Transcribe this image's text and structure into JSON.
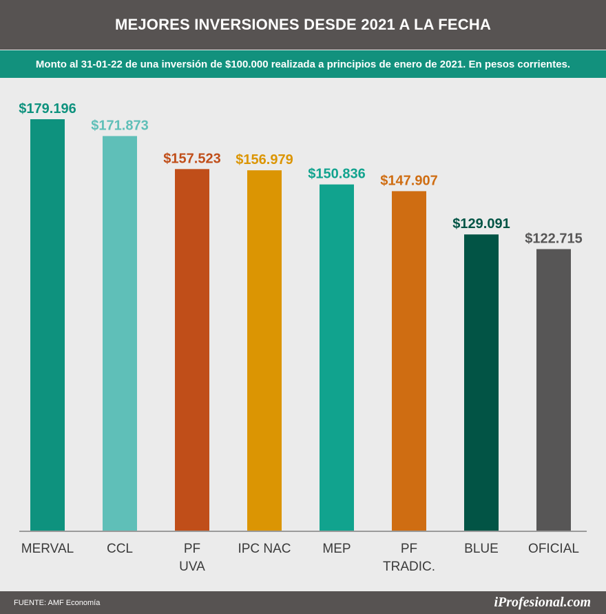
{
  "header": {
    "title": "MEJORES INVERSIONES DESDE 2021 A LA FECHA",
    "subtitle": "Monto al 31-01-22 de una inversión de $100.000 realizada a principios de enero de 2021. En pesos corrientes."
  },
  "chart_data": {
    "type": "bar",
    "title": "MEJORES INVERSIONES DESDE 2021 A LA FECHA",
    "subtitle": "Monto al 31-01-22 de una inversión de $100.000 realizada a principios de enero de 2021. En pesos corrientes.",
    "categories": [
      [
        "MERVAL"
      ],
      [
        "CCL"
      ],
      [
        "PF",
        "UVA"
      ],
      [
        "IPC NAC"
      ],
      [
        "MEP"
      ],
      [
        "PF",
        "TRADIC."
      ],
      [
        "BLUE"
      ],
      [
        "OFICIAL"
      ]
    ],
    "values": [
      179196,
      171873,
      157523,
      156979,
      150836,
      147907,
      129091,
      122715
    ],
    "value_labels": [
      "$179.196",
      "$171.873",
      "$157.523",
      "$156.979",
      "$150.836",
      "$147.907",
      "$129.091",
      "$122.715"
    ],
    "colors": [
      "#0e927e",
      "#5fbfb8",
      "#c04e19",
      "#db9503",
      "#11a38e",
      "#cf6d12",
      "#025445",
      "#575656"
    ],
    "xlabel": "",
    "ylabel": "",
    "ylim": [
      0,
      179196
    ],
    "grid": false,
    "legend": "none"
  },
  "footer": {
    "source": "FUENTE: AMF Economía",
    "logo": "iProfesional.com"
  }
}
